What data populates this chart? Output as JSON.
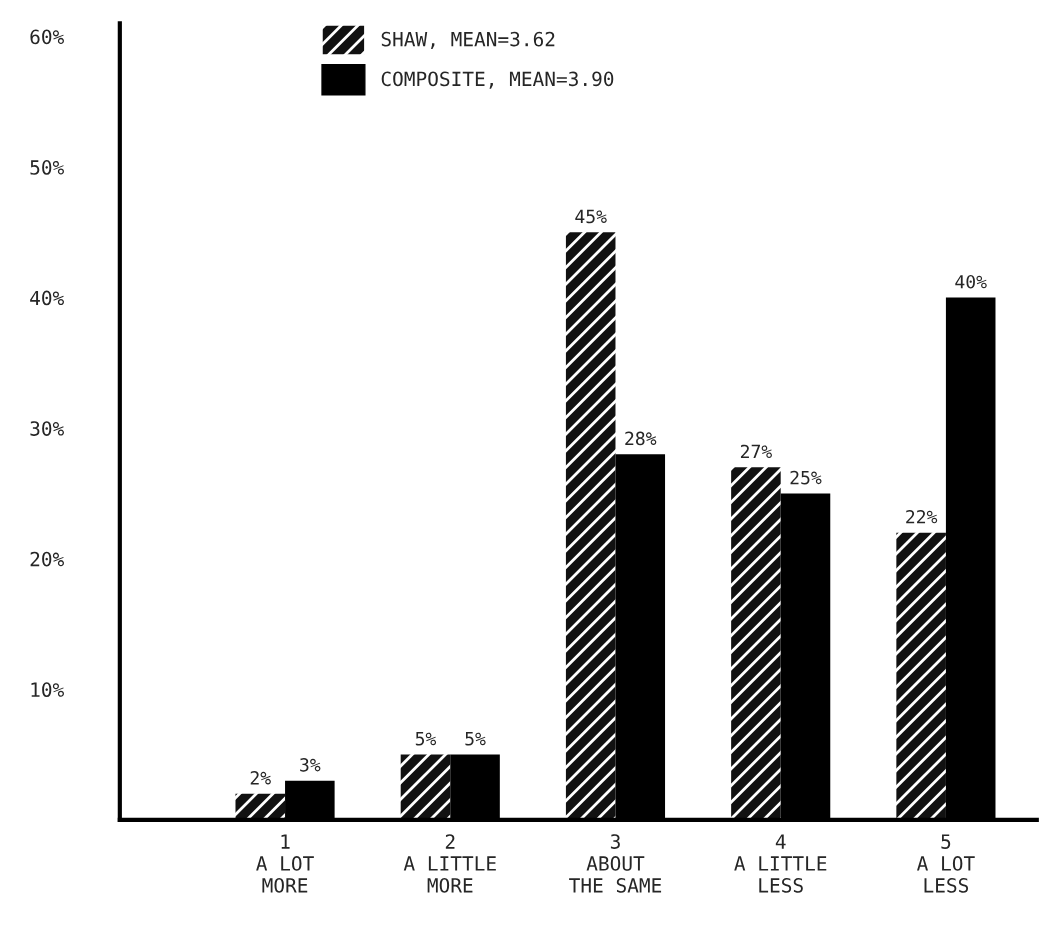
{
  "chart_data": {
    "type": "bar",
    "categories": [
      "1\nA LOT\nMORE",
      "2\nA LITTLE\nMORE",
      "3\nABOUT\nTHE SAME",
      "4\nA LITTLE\nLESS",
      "5\nA LOT\nLESS"
    ],
    "series": [
      {
        "name": "SHAW, MEAN=3.62",
        "color": "#111111",
        "values": [
          2,
          5,
          45,
          27,
          22
        ],
        "value_labels": [
          "2%",
          "5%",
          "45%",
          "27%",
          "22%"
        ]
      },
      {
        "name": "COMPOSITE, MEAN=3.90",
        "color": "#000000",
        "values": [
          3,
          5,
          28,
          25,
          40
        ],
        "value_labels": [
          "3%",
          "5%",
          "28%",
          "25%",
          "40%"
        ]
      }
    ],
    "ylim": [
      0,
      61
    ],
    "yticks": [
      {
        "value": 10,
        "label": "10%"
      },
      {
        "value": 20,
        "label": "20%"
      },
      {
        "value": 30,
        "label": "30%"
      },
      {
        "value": 40,
        "label": "40%"
      },
      {
        "value": 50,
        "label": "50%"
      },
      {
        "value": 60,
        "label": "60%"
      }
    ],
    "legend": "top",
    "grid": false
  }
}
